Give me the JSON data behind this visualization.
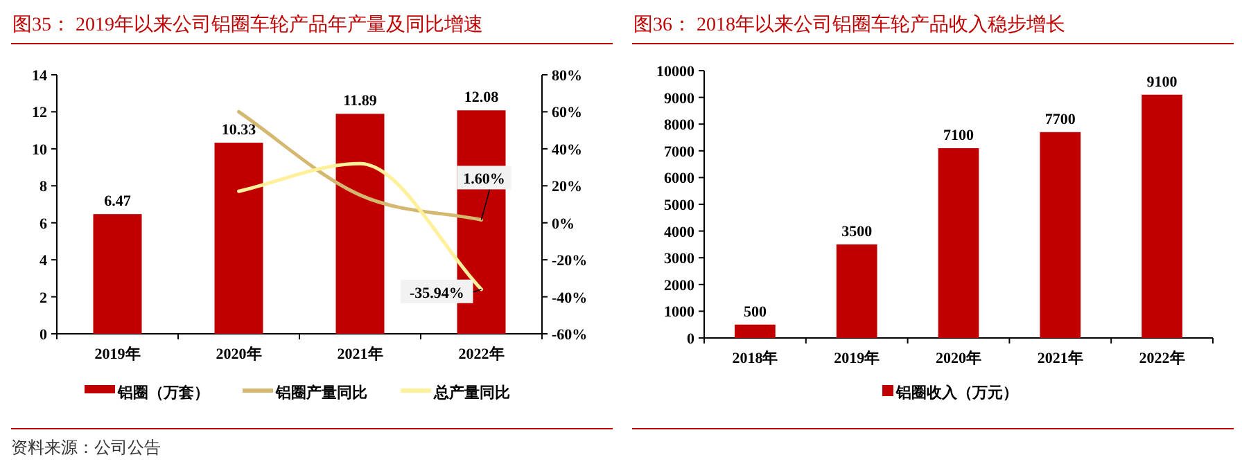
{
  "chart_data": [
    {
      "type": "bar",
      "title": "图35：  2019年以来公司铝圈车轮产品年产量及同比增速",
      "categories": [
        "2019年",
        "2020年",
        "2021年",
        "2022年"
      ],
      "series": [
        {
          "name": "铝圈（万套）",
          "color": "#c00000",
          "values": [
            6.47,
            10.33,
            11.89,
            12.08
          ],
          "value_labels": [
            "6.47",
            "10.33",
            "11.89",
            "12.08"
          ]
        },
        {
          "name": "铝圈产量同比",
          "type": "line",
          "axis": "y2",
          "color": "#d4b870",
          "values": [
            null,
            60,
            15,
            1.6
          ],
          "value_labels": [
            null,
            null,
            null,
            "1.60%"
          ]
        },
        {
          "name": "总产量同比",
          "type": "line",
          "axis": "y2",
          "color": "#fff099",
          "values": [
            null,
            17,
            32,
            -35.94
          ],
          "value_labels": [
            null,
            null,
            null,
            "-35.94%"
          ]
        }
      ],
      "ylim": [
        0,
        14
      ],
      "yticks": [
        0,
        2,
        4,
        6,
        8,
        10,
        12,
        14
      ],
      "y2lim": [
        -60,
        80
      ],
      "y2ticks": [
        {
          "value": -60,
          "label": "-60%"
        },
        {
          "value": -40,
          "label": "-40%"
        },
        {
          "value": -20,
          "label": "-20%"
        },
        {
          "value": 0,
          "label": "0%"
        },
        {
          "value": 20,
          "label": "20%"
        },
        {
          "value": 40,
          "label": "40%"
        },
        {
          "value": 60,
          "label": "60%"
        },
        {
          "value": 80,
          "label": "80%"
        }
      ],
      "legend": "bottom",
      "grid": false,
      "annotations": [
        "资料来源：公司公告"
      ]
    },
    {
      "type": "bar",
      "title": "图36：  2018年以来公司铝圈车轮产品收入稳步增长",
      "categories": [
        "2018年",
        "2019年",
        "2020年",
        "2021年",
        "2022年"
      ],
      "series": [
        {
          "name": "铝圈收入（万元）",
          "color": "#c00000",
          "values": [
            500,
            3500,
            7100,
            7700,
            9100
          ]
        }
      ],
      "ylim": [
        0,
        10000
      ],
      "yticks": [
        0,
        1000,
        2000,
        3000,
        4000,
        5000,
        6000,
        7000,
        8000,
        9000,
        10000
      ],
      "data_labels": true,
      "legend": "bottom",
      "grid": false
    }
  ]
}
